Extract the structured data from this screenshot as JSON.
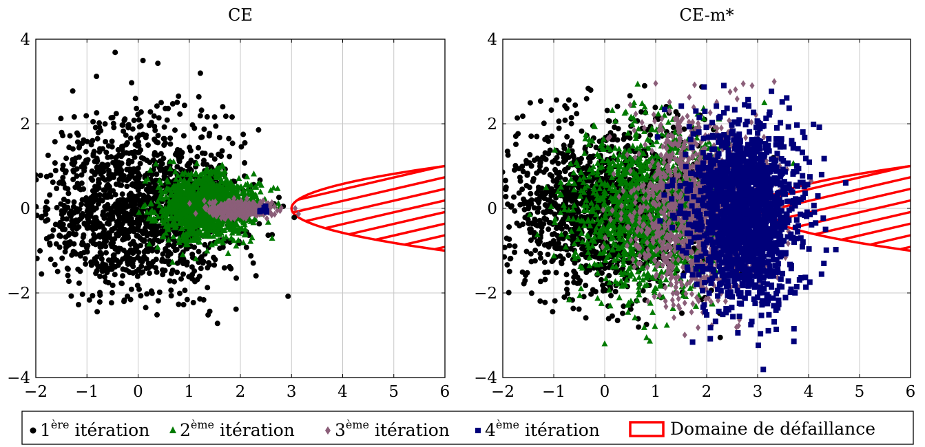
{
  "chart_data": [
    {
      "type": "scatter",
      "title": "CE",
      "xlim": [
        -2,
        6
      ],
      "ylim": [
        -4,
        4
      ],
      "xticks": [
        "−2",
        "−1",
        "0",
        "1",
        "2",
        "3",
        "4",
        "5",
        "6"
      ],
      "yticks": [
        "−4",
        "−2",
        "0",
        "2",
        "4"
      ],
      "grid": true,
      "series": [
        {
          "name": "1ère itération",
          "marker": "circle",
          "color": "#000000",
          "cloud": {
            "mx": 0,
            "my": 0,
            "sx": 1,
            "sy": 1,
            "n": 1500
          }
        },
        {
          "name": "2ème itération",
          "marker": "triangle",
          "color": "#007a00",
          "cloud": {
            "mx": 1.35,
            "my": 0.05,
            "sx": 0.45,
            "sy": 0.38,
            "n": 1300
          }
        },
        {
          "name": "3ème itération",
          "marker": "diamond",
          "color": "#8b5e79",
          "cloud": {
            "mx": 2.0,
            "my": -0.03,
            "sx": 0.32,
            "sy": 0.09,
            "n": 420
          }
        },
        {
          "name": "4ème itération",
          "marker": "square",
          "color": "#00007a",
          "cloud": {
            "mx": 2.45,
            "my": -0.05,
            "sx": 0.05,
            "sy": 0.04,
            "n": 10
          }
        }
      ]
    },
    {
      "type": "scatter",
      "title": "CE-m*",
      "xlim": [
        -2,
        6
      ],
      "ylim": [
        -4,
        4
      ],
      "xticks": [
        "−2",
        "−1",
        "0",
        "1",
        "2",
        "3",
        "4",
        "5",
        "6"
      ],
      "yticks": [
        "−4",
        "−2",
        "0",
        "2",
        "4"
      ],
      "grid": true,
      "series": [
        {
          "name": "1ère itération",
          "marker": "circle",
          "color": "#000000",
          "cloud": {
            "mx": 0,
            "my": 0,
            "sx": 1,
            "sy": 1,
            "n": 1500
          }
        },
        {
          "name": "2ème itération",
          "marker": "triangle",
          "color": "#007a00",
          "cloud": {
            "mx": 0.95,
            "my": -0.05,
            "sx": 0.75,
            "sy": 1.0,
            "n": 1300
          }
        },
        {
          "name": "3ème itération",
          "marker": "diamond",
          "color": "#8b5e79",
          "cloud": {
            "mx": 1.8,
            "my": 0.0,
            "sx": 0.6,
            "sy": 1.05,
            "n": 1300
          }
        },
        {
          "name": "4ème itération",
          "marker": "square",
          "color": "#00007a",
          "cloud": {
            "mx": 2.75,
            "my": -0.1,
            "sx": 0.55,
            "sy": 1.05,
            "n": 1600
          }
        }
      ]
    }
  ],
  "failure_domain": {
    "name": "Domaine de défaillance",
    "boundary": "x = 3 + 3*y^2",
    "color": "#ff0000"
  },
  "legend": {
    "items": [
      {
        "sup": "ère",
        "suffix": " itération"
      },
      {
        "sup": "ème",
        "suffix": " itération"
      },
      {
        "sup": "ème",
        "suffix": " itération"
      },
      {
        "sup": "ème",
        "suffix": " itération"
      },
      {
        "sup": "",
        "suffix": ""
      }
    ],
    "numerals": [
      "1",
      "2",
      "3",
      "4"
    ]
  }
}
